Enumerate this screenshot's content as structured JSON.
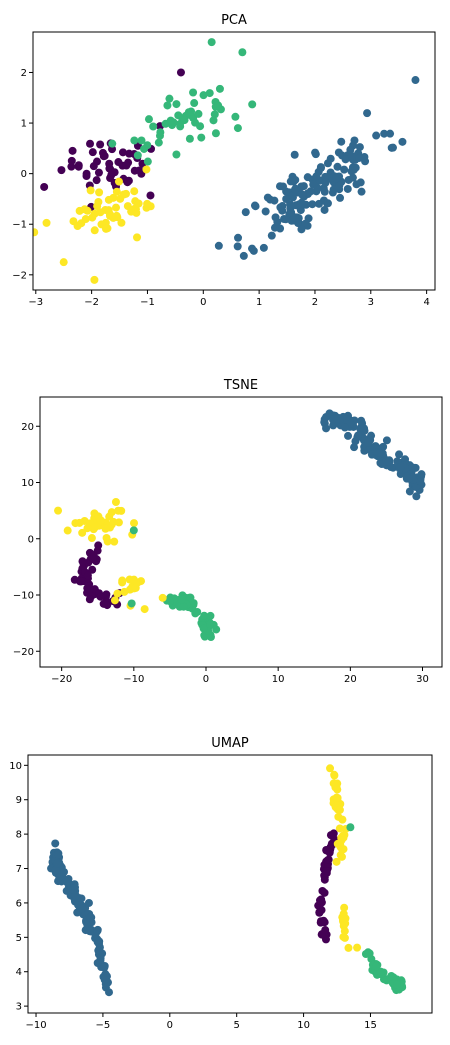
{
  "palette": {
    "purple": "#440154",
    "blue": "#31688e",
    "green": "#35b779",
    "yellow": "#fde725"
  },
  "chart_data": [
    {
      "type": "scatter",
      "title": "PCA",
      "xlabel": "",
      "ylabel": "",
      "xlim": [
        -3.05,
        4.15
      ],
      "ylim": [
        -2.3,
        2.8
      ],
      "xticks": [
        -3,
        -2,
        -1,
        0,
        1,
        2,
        3,
        4
      ],
      "yticks": [
        -2,
        -1,
        0,
        1,
        2
      ],
      "clusters": [
        {
          "color": "#31688e",
          "type": "ellipse",
          "cx": 2.0,
          "cy": -0.3,
          "rx": 1.45,
          "ry": 0.55,
          "angle": 40,
          "n": 150,
          "seed": 11
        },
        {
          "color": "#440154",
          "type": "ellipse",
          "cx": -1.6,
          "cy": 0.2,
          "rx": 1.0,
          "ry": 0.55,
          "angle": 25,
          "n": 50,
          "seed": 12
        },
        {
          "color": "#35b779",
          "type": "ellipse",
          "cx": -0.4,
          "cy": 1.0,
          "rx": 1.1,
          "ry": 0.5,
          "angle": 30,
          "n": 50,
          "seed": 13
        },
        {
          "color": "#fde725",
          "type": "ellipse",
          "cx": -1.5,
          "cy": -0.6,
          "rx": 1.1,
          "ry": 0.45,
          "angle": 30,
          "n": 50,
          "seed": 14
        }
      ],
      "points": [
        {
          "x": 3.8,
          "y": 1.85,
          "color": "#31688e"
        },
        {
          "x": 0.15,
          "y": 2.6,
          "color": "#35b779"
        },
        {
          "x": 0.7,
          "y": 2.4,
          "color": "#35b779"
        },
        {
          "x": -2.5,
          "y": -1.75,
          "color": "#fde725"
        },
        {
          "x": -1.95,
          "y": -2.1,
          "color": "#fde725"
        },
        {
          "x": -0.4,
          "y": 2.0,
          "color": "#440154"
        }
      ]
    },
    {
      "type": "scatter",
      "title": "TSNE",
      "xlabel": "",
      "ylabel": "",
      "xlim": [
        -23,
        32.7
      ],
      "ylim": [
        -22.8,
        25.2
      ],
      "xticks": [
        -20,
        -10,
        0,
        10,
        20,
        30
      ],
      "yticks": [
        -20,
        -10,
        0,
        10,
        20
      ],
      "clusters": [
        {
          "color": "#31688e",
          "type": "path",
          "path": [
            [
              17,
              21
            ],
            [
              20,
              21
            ],
            [
              23,
              16
            ],
            [
              27,
              13
            ],
            [
              30,
              9
            ]
          ],
          "spread": 1.4,
          "n": 150,
          "seed": 21
        },
        {
          "color": "#fde725",
          "type": "ellipse",
          "cx": -15,
          "cy": 2.5,
          "rx": 4.5,
          "ry": 3.2,
          "angle": 0,
          "n": 35,
          "seed": 22
        },
        {
          "color": "#440154",
          "type": "path",
          "path": [
            [
              -15,
              -2
            ],
            [
              -17,
              -7
            ],
            [
              -15,
              -11
            ],
            [
              -12,
              -11
            ]
          ],
          "spread": 1.2,
          "n": 45,
          "seed": 23
        },
        {
          "color": "#fde725",
          "type": "ellipse",
          "cx": -11,
          "cy": -9,
          "rx": 2.0,
          "ry": 2.5,
          "angle": 0,
          "n": 15,
          "seed": 24
        },
        {
          "color": "#35b779",
          "type": "path",
          "path": [
            [
              -5,
              -11
            ],
            [
              -2,
              -11
            ],
            [
              0,
              -15
            ],
            [
              0.5,
              -18
            ]
          ],
          "spread": 1.1,
          "n": 50,
          "seed": 25
        }
      ],
      "points": [
        {
          "x": -20.5,
          "y": 5,
          "color": "#fde725"
        },
        {
          "x": -8.5,
          "y": -12.5,
          "color": "#fde725"
        },
        {
          "x": -6,
          "y": -10.5,
          "color": "#fde725"
        },
        {
          "x": -10,
          "y": 1.5,
          "color": "#35b779"
        },
        {
          "x": -10.3,
          "y": -11.5,
          "color": "#35b779"
        }
      ]
    },
    {
      "type": "scatter",
      "title": "UMAP",
      "xlabel": "",
      "ylabel": "",
      "xlim": [
        -10.6,
        19.6
      ],
      "ylim": [
        2.8,
        10.3
      ],
      "xticks": [
        -10,
        -5,
        0,
        5,
        10,
        15
      ],
      "yticks": [
        3,
        4,
        5,
        6,
        7,
        8,
        9,
        10
      ],
      "clusters": [
        {
          "color": "#31688e",
          "type": "path",
          "path": [
            [
              -8.4,
              7.5
            ],
            [
              -8.6,
              7.1
            ],
            [
              -7.5,
              6.5
            ],
            [
              -6.5,
              5.8
            ],
            [
              -5.5,
              5.0
            ],
            [
              -4.7,
              3.6
            ]
          ],
          "spread": 0.25,
          "n": 150,
          "seed": 31
        },
        {
          "color": "#440154",
          "type": "path",
          "path": [
            [
              12.2,
              8.0
            ],
            [
              11.7,
              7.0
            ],
            [
              11.2,
              6.0
            ],
            [
              11.6,
              5.0
            ]
          ],
          "spread": 0.2,
          "n": 50,
          "seed": 32
        },
        {
          "color": "#fde725",
          "type": "path",
          "path": [
            [
              12.2,
              9.8
            ],
            [
              12.5,
              8.8
            ],
            [
              13.0,
              8.0
            ],
            [
              12.6,
              7.2
            ]
          ],
          "spread": 0.25,
          "n": 35,
          "seed": 33
        },
        {
          "color": "#fde725",
          "type": "path",
          "path": [
            [
              13.0,
              5.8
            ],
            [
              13.0,
              5.2
            ],
            [
              13.3,
              4.8
            ]
          ],
          "spread": 0.2,
          "n": 15,
          "seed": 34
        },
        {
          "color": "#35b779",
          "type": "path",
          "path": [
            [
              14.8,
              4.5
            ],
            [
              15.5,
              4.0
            ],
            [
              16.5,
              3.7
            ],
            [
              17.5,
              3.6
            ]
          ],
          "spread": 0.2,
          "n": 50,
          "seed": 35
        }
      ],
      "points": [
        {
          "x": 13.5,
          "y": 8.2,
          "color": "#35b779"
        },
        {
          "x": 14.0,
          "y": 4.7,
          "color": "#fde725"
        }
      ]
    }
  ]
}
